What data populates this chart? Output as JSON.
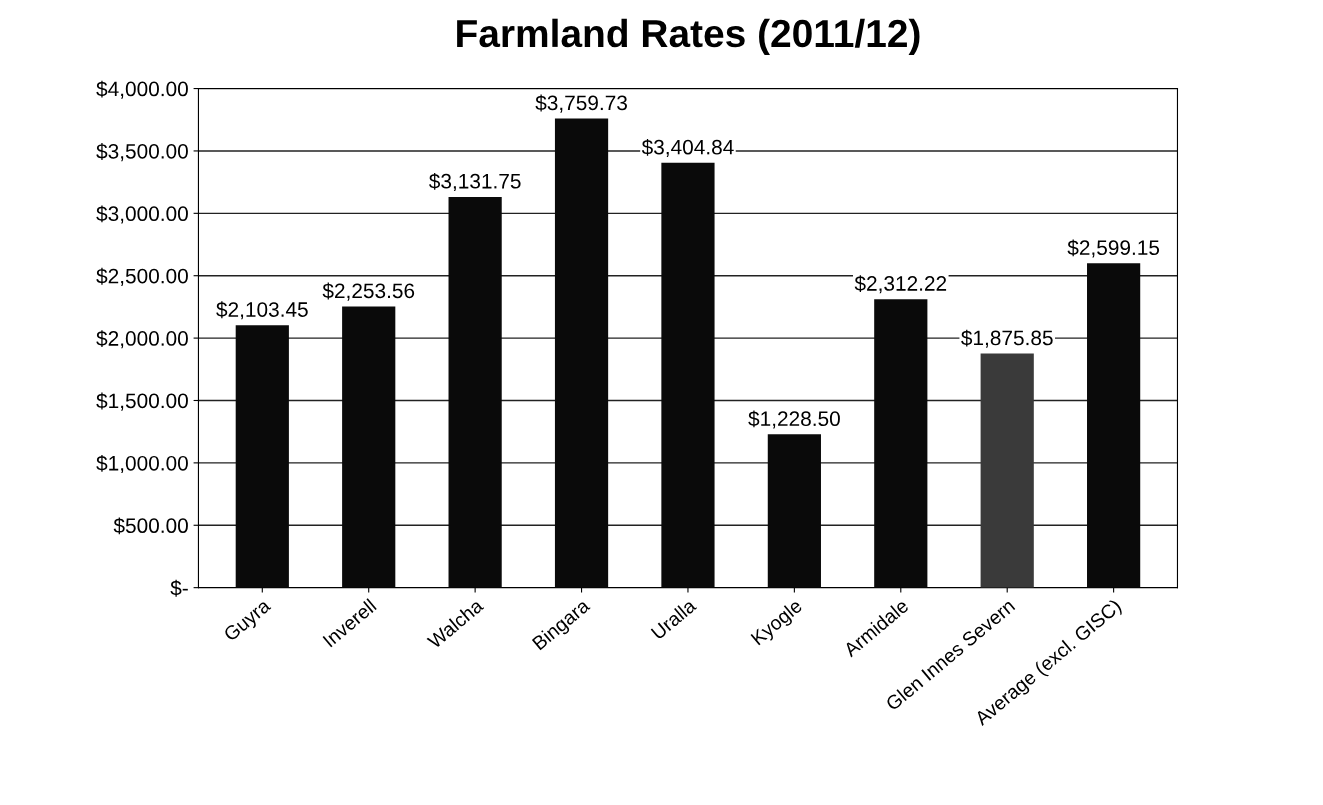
{
  "chart_data": {
    "type": "bar",
    "title": "Farmland Rates (2011/12)",
    "categories": [
      "Guyra",
      "Inverell",
      "Walcha",
      "Bingara",
      "Uralla",
      "Kyogle",
      "Armidale",
      "Glen Innes Severn",
      "Average (excl. GISC)"
    ],
    "values": [
      2103.45,
      2253.56,
      3131.75,
      3759.73,
      3404.84,
      1228.5,
      2312.22,
      1875.85,
      2599.15
    ],
    "value_labels": [
      "$2,103.45",
      "$2,253.56",
      "$3,131.75",
      "$3,759.73",
      "$3,404.84",
      "$1,228.50",
      "$2,312.22",
      "$1,875.85",
      "$2,599.15"
    ],
    "colors": [
      "#0a0a0a",
      "#0a0a0a",
      "#0a0a0a",
      "#0a0a0a",
      "#0a0a0a",
      "#0a0a0a",
      "#0a0a0a",
      "#3a3a3a",
      "#0a0a0a"
    ],
    "ylim": [
      0,
      4000
    ],
    "yticks": [
      {
        "value": 0,
        "label": "$-"
      },
      {
        "value": 500,
        "label": "$500.00"
      },
      {
        "value": 1000,
        "label": "$1,000.00"
      },
      {
        "value": 1500,
        "label": "$1,500.00"
      },
      {
        "value": 2000,
        "label": "$2,000.00"
      },
      {
        "value": 2500,
        "label": "$2,500.00"
      },
      {
        "value": 3000,
        "label": "$3,000.00"
      },
      {
        "value": 3500,
        "label": "$3,500.00"
      },
      {
        "value": 4000,
        "label": "$4,000.00"
      }
    ],
    "grid": "y",
    "legend": false
  }
}
